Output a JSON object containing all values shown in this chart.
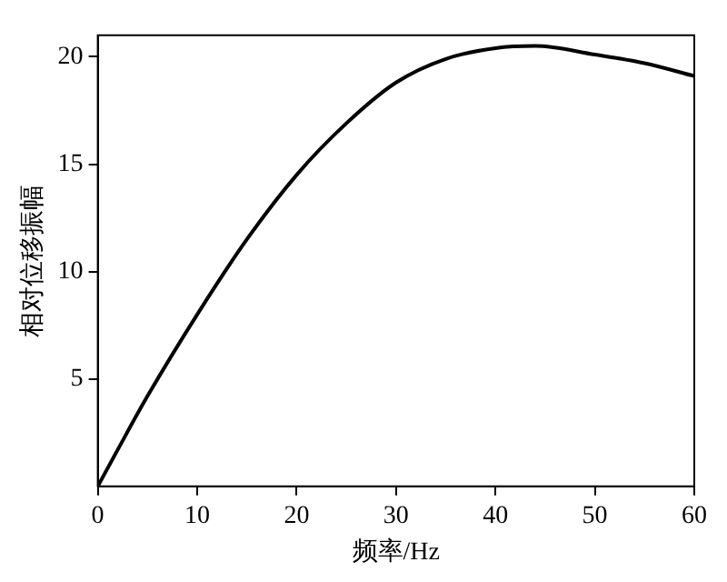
{
  "chart_data": {
    "type": "line",
    "xlabel": "频率/Hz",
    "ylabel": "相对位移振幅",
    "x": [
      0,
      2,
      5,
      10,
      15,
      20,
      25,
      30,
      35,
      40,
      44,
      50,
      55,
      60
    ],
    "series": [
      {
        "color": "#000000",
        "values": [
          0,
          1.7,
          4.2,
          8.0,
          11.5,
          14.5,
          16.9,
          18.8,
          19.9,
          20.4,
          20.5,
          20.1,
          19.7,
          19.1
        ]
      }
    ],
    "xlim": [
      0,
      60
    ],
    "xticks": [
      0,
      10,
      20,
      30,
      40,
      50,
      60
    ],
    "ylim": [
      0,
      21
    ],
    "yticks": [
      5,
      10,
      15,
      20
    ],
    "grid": false,
    "legend": false,
    "marker": "none",
    "line_style": "solid"
  }
}
